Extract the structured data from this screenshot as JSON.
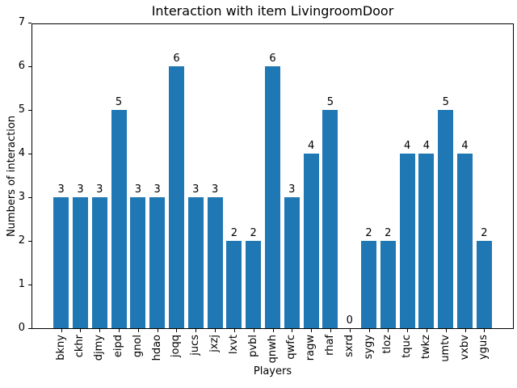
{
  "chart_data": {
    "type": "bar",
    "title": "Interaction with item LivingroomDoor",
    "xlabel": "Players",
    "ylabel": "Numbers of interaction",
    "categories": [
      "bkny",
      "ckhr",
      "djmy",
      "eipd",
      "gnol",
      "hdao",
      "joqq",
      "jucs",
      "jxzj",
      "lxvt",
      "pvbl",
      "qnwh",
      "qwfc",
      "ragw",
      "rhaf",
      "sxrd",
      "sygy",
      "tloz",
      "tquc",
      "twkz",
      "umtv",
      "vxbv",
      "ygus"
    ],
    "values": [
      3,
      3,
      3,
      5,
      3,
      3,
      6,
      3,
      3,
      2,
      2,
      6,
      3,
      4,
      5,
      0,
      2,
      2,
      4,
      4,
      5,
      4,
      2
    ],
    "bar_labels": [
      3,
      3,
      3,
      5,
      3,
      3,
      6,
      3,
      3,
      2,
      2,
      6,
      3,
      4,
      5,
      0,
      2,
      2,
      4,
      4,
      5,
      4,
      2
    ],
    "ylim": [
      0,
      7
    ],
    "yticks": [
      0,
      1,
      2,
      3,
      4,
      5,
      6,
      7
    ],
    "bar_color": "#1f77b4",
    "bar_width_fraction": 0.8,
    "grid": false,
    "legend": "none",
    "text_color": "#000000",
    "background_color": "#ffffff"
  }
}
